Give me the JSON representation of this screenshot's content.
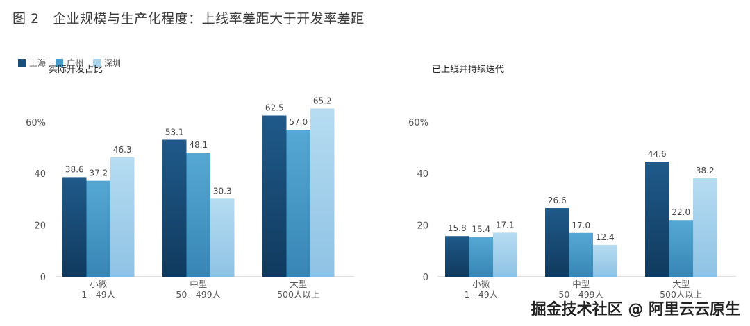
{
  "figure_title": "图 2　企业规模与生产化程度：上线率差距大于开发率差距",
  "watermark": "掘金技术社区 @ 阿里云云原生",
  "legend": [
    {
      "label": "上海",
      "color": "#1b4f7a"
    },
    {
      "label": "广州",
      "color": "#4a9cc8"
    },
    {
      "label": "深圳",
      "color": "#a9d3ec"
    }
  ],
  "chart_data": [
    {
      "type": "bar",
      "title": "实际开发占比",
      "categories": [
        [
          "小微",
          "1 - 49人"
        ],
        [
          "中型",
          "50 - 499人"
        ],
        [
          "大型",
          "500人以上"
        ]
      ],
      "series": [
        {
          "name": "上海",
          "values": [
            38.6,
            53.1,
            62.5
          ]
        },
        {
          "name": "广州",
          "values": [
            37.2,
            48.1,
            57.0
          ]
        },
        {
          "name": "深圳",
          "values": [
            46.3,
            30.3,
            65.2
          ]
        }
      ],
      "yticks": [
        "0",
        "20",
        "40",
        "60%"
      ],
      "ylim": [
        0,
        70
      ],
      "legend_position": "top-left",
      "grid": false
    },
    {
      "type": "bar",
      "title": "已上线并持续迭代",
      "categories": [
        [
          "小微",
          "1 - 49人"
        ],
        [
          "中型",
          "50 - 499人"
        ],
        [
          "大型",
          "500人以上"
        ]
      ],
      "series": [
        {
          "name": "上海",
          "values": [
            15.8,
            26.6,
            44.6
          ]
        },
        {
          "name": "广州",
          "values": [
            15.4,
            17.0,
            22.0
          ]
        },
        {
          "name": "深圳",
          "values": [
            17.1,
            12.4,
            38.2
          ]
        }
      ],
      "yticks": [
        "0",
        "20",
        "40",
        "60%"
      ],
      "ylim": [
        0,
        70
      ],
      "grid": false
    }
  ]
}
